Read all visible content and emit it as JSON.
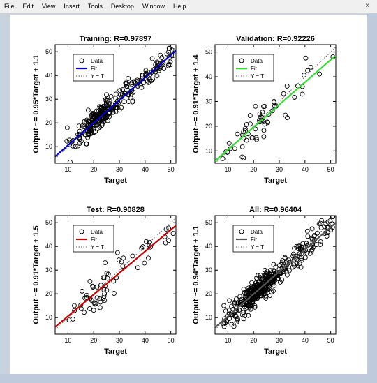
{
  "menu": {
    "items": [
      "File",
      "Edit",
      "View",
      "Insert",
      "Tools",
      "Desktop",
      "Window",
      "Help"
    ],
    "close_glyph": "×"
  },
  "chart_data": [
    {
      "type": "scatter",
      "title": "Training: R=0.97897",
      "xlabel": "Target",
      "ylabel": "Output ~= 0.95*Target + 1.1",
      "xlim": [
        5,
        52
      ],
      "ylim": [
        3,
        53
      ],
      "xticks": [
        10,
        20,
        30,
        40,
        50
      ],
      "yticks": [
        10,
        20,
        30,
        40,
        50
      ],
      "fit": {
        "slope": 0.95,
        "intercept": 1.1,
        "color": "#0000c8"
      },
      "point_count": 300,
      "noise": 2.5,
      "seed": 11,
      "legend": {
        "placement": "top-left",
        "entries": [
          "Data",
          "Fit",
          "Y = T"
        ]
      }
    },
    {
      "type": "scatter",
      "title": "Validation: R=0.92226",
      "xlabel": "Target",
      "ylabel": "Output ~= 0.91*Target + 1.4",
      "xlim": [
        5,
        52
      ],
      "ylim": [
        5,
        53
      ],
      "xticks": [
        10,
        20,
        30,
        40,
        50
      ],
      "yticks": [
        10,
        20,
        30,
        40,
        50
      ],
      "fit": {
        "slope": 0.91,
        "intercept": 1.4,
        "color": "#33dd33"
      },
      "point_count": 65,
      "noise": 3.6,
      "seed": 23,
      "legend": {
        "placement": "top-left",
        "entries": [
          "Data",
          "Fit",
          "Y = T"
        ]
      }
    },
    {
      "type": "scatter",
      "title": "Test: R=0.90828",
      "xlabel": "Target",
      "ylabel": "Output ~= 0.91*Target + 1.5",
      "xlim": [
        5,
        52
      ],
      "ylim": [
        3,
        53
      ],
      "xticks": [
        10,
        20,
        30,
        40,
        50
      ],
      "yticks": [
        10,
        20,
        30,
        40,
        50
      ],
      "fit": {
        "slope": 0.91,
        "intercept": 1.5,
        "color": "#cc0000"
      },
      "point_count": 65,
      "noise": 3.8,
      "seed": 37,
      "legend": {
        "placement": "top-left",
        "entries": [
          "Data",
          "Fit",
          "Y = T"
        ]
      }
    },
    {
      "type": "scatter",
      "title": "All: R=0.96404",
      "xlabel": "Target",
      "ylabel": "Output ~= 0.94*Target + 1.1",
      "xlim": [
        5,
        52
      ],
      "ylim": [
        3,
        53
      ],
      "xticks": [
        10,
        20,
        30,
        40,
        50
      ],
      "yticks": [
        10,
        20,
        30,
        40,
        50
      ],
      "fit": {
        "slope": 0.94,
        "intercept": 1.1,
        "color": "#555555"
      },
      "point_count": 430,
      "noise": 2.8,
      "seed": 53,
      "legend": {
        "placement": "top-left",
        "entries": [
          "Data",
          "Fit",
          "Y = T"
        ]
      }
    }
  ]
}
